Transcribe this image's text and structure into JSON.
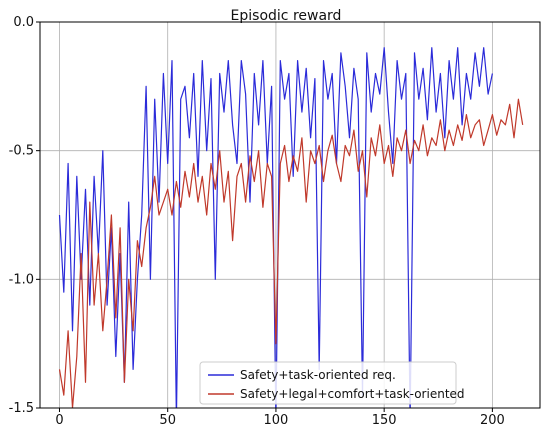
{
  "chart_data": {
    "type": "line",
    "title": "Episodic reward",
    "xlabel": "",
    "ylabel": "",
    "xlim": [
      -9,
      222
    ],
    "ylim": [
      -1.5,
      0.0
    ],
    "xticks": [
      0,
      50,
      100,
      150,
      200
    ],
    "yticks": [
      0.0,
      -0.5,
      -1.0,
      -1.5
    ],
    "xtick_labels": [
      "0",
      "50",
      "100",
      "150",
      "200"
    ],
    "ytick_labels": [
      "0.0",
      "-0.5",
      "-1.0",
      "-1.5"
    ],
    "grid": true,
    "legend_position": "lower-right",
    "series": [
      {
        "name": "Safety+task-oriented req.",
        "color": "#2b2bd9",
        "x": [
          0,
          2,
          4,
          6,
          8,
          10,
          12,
          14,
          16,
          18,
          20,
          22,
          24,
          26,
          28,
          30,
          32,
          34,
          36,
          38,
          40,
          42,
          44,
          46,
          48,
          50,
          52,
          54,
          56,
          58,
          60,
          62,
          64,
          66,
          68,
          70,
          72,
          74,
          76,
          78,
          80,
          82,
          84,
          86,
          88,
          90,
          92,
          94,
          96,
          98,
          100,
          102,
          104,
          106,
          108,
          110,
          112,
          114,
          116,
          118,
          120,
          122,
          124,
          126,
          128,
          130,
          132,
          134,
          136,
          138,
          140,
          142,
          144,
          146,
          148,
          150,
          152,
          154,
          156,
          158,
          160,
          162,
          164,
          166,
          168,
          170,
          172,
          174,
          176,
          178,
          180,
          182,
          184,
          186,
          188,
          190,
          192,
          194,
          196,
          198,
          200
        ],
        "y": [
          -0.75,
          -1.05,
          -0.55,
          -1.2,
          -0.6,
          -1.0,
          -0.65,
          -1.1,
          -0.6,
          -0.9,
          -0.5,
          -1.1,
          -0.8,
          -1.3,
          -0.9,
          -1.4,
          -0.7,
          -1.35,
          -1.0,
          -0.75,
          -0.25,
          -1.0,
          -0.3,
          -0.7,
          -0.2,
          -0.55,
          -0.15,
          -1.55,
          -0.3,
          -0.25,
          -0.45,
          -0.2,
          -0.6,
          -0.15,
          -0.5,
          -0.22,
          -1.0,
          -0.2,
          -0.35,
          -0.15,
          -0.4,
          -0.55,
          -0.15,
          -0.28,
          -0.7,
          -0.2,
          -0.4,
          -0.15,
          -0.55,
          -0.25,
          -1.55,
          -0.15,
          -0.3,
          -0.2,
          -0.6,
          -0.15,
          -0.35,
          -0.18,
          -0.45,
          -0.22,
          -1.35,
          -0.15,
          -0.3,
          -0.2,
          -0.55,
          -0.12,
          -0.25,
          -0.45,
          -0.18,
          -0.3,
          -1.45,
          -0.12,
          -0.35,
          -0.2,
          -0.28,
          -0.1,
          -0.35,
          -0.55,
          -0.15,
          -0.3,
          -0.2,
          -1.55,
          -0.12,
          -0.3,
          -0.18,
          -0.38,
          -0.1,
          -0.35,
          -0.2,
          -0.45,
          -0.15,
          -0.3,
          -0.1,
          -0.4,
          -0.2,
          -0.3,
          -0.12,
          -0.25,
          -0.1,
          -0.28,
          -0.2
        ]
      },
      {
        "name": "Safety+legal+comfort+task-oriented",
        "color": "#c0392b",
        "x": [
          0,
          2,
          4,
          6,
          8,
          10,
          12,
          14,
          16,
          18,
          20,
          22,
          24,
          26,
          28,
          30,
          32,
          34,
          36,
          38,
          40,
          42,
          44,
          46,
          48,
          50,
          52,
          54,
          56,
          58,
          60,
          62,
          64,
          66,
          68,
          70,
          72,
          74,
          76,
          78,
          80,
          82,
          84,
          86,
          88,
          90,
          92,
          94,
          96,
          98,
          100,
          102,
          104,
          106,
          108,
          110,
          112,
          114,
          116,
          118,
          120,
          122,
          124,
          126,
          128,
          130,
          132,
          134,
          136,
          138,
          140,
          142,
          144,
          146,
          148,
          150,
          152,
          154,
          156,
          158,
          160,
          162,
          164,
          166,
          168,
          170,
          172,
          174,
          176,
          178,
          180,
          182,
          184,
          186,
          188,
          190,
          192,
          194,
          196,
          198,
          200,
          202,
          204,
          206,
          208,
          210,
          212,
          214
        ],
        "y": [
          -1.35,
          -1.45,
          -1.2,
          -1.5,
          -1.3,
          -0.9,
          -1.4,
          -0.7,
          -1.1,
          -0.9,
          -1.2,
          -1.0,
          -0.75,
          -1.15,
          -0.8,
          -1.4,
          -1.0,
          -1.2,
          -0.85,
          -0.95,
          -0.8,
          -0.72,
          -0.6,
          -0.75,
          -0.7,
          -0.65,
          -0.75,
          -0.62,
          -0.72,
          -0.58,
          -0.68,
          -0.55,
          -0.7,
          -0.6,
          -0.75,
          -0.55,
          -0.65,
          -0.5,
          -0.7,
          -0.58,
          -0.85,
          -0.6,
          -0.55,
          -0.7,
          -0.52,
          -0.62,
          -0.5,
          -0.72,
          -0.55,
          -0.6,
          -1.25,
          -0.55,
          -0.48,
          -0.62,
          -0.52,
          -0.58,
          -0.45,
          -0.7,
          -0.5,
          -0.55,
          -0.48,
          -0.62,
          -0.5,
          -0.44,
          -0.55,
          -0.62,
          -0.48,
          -0.52,
          -0.42,
          -0.58,
          -0.5,
          -0.68,
          -0.45,
          -0.52,
          -0.4,
          -0.55,
          -0.48,
          -0.6,
          -0.45,
          -0.5,
          -0.42,
          -0.55,
          -0.46,
          -0.5,
          -0.4,
          -0.52,
          -0.45,
          -0.48,
          -0.38,
          -0.5,
          -0.42,
          -0.48,
          -0.4,
          -0.46,
          -0.36,
          -0.45,
          -0.4,
          -0.38,
          -0.48,
          -0.42,
          -0.36,
          -0.44,
          -0.38,
          -0.4,
          -0.32,
          -0.45,
          -0.3,
          -0.4
        ]
      }
    ]
  }
}
